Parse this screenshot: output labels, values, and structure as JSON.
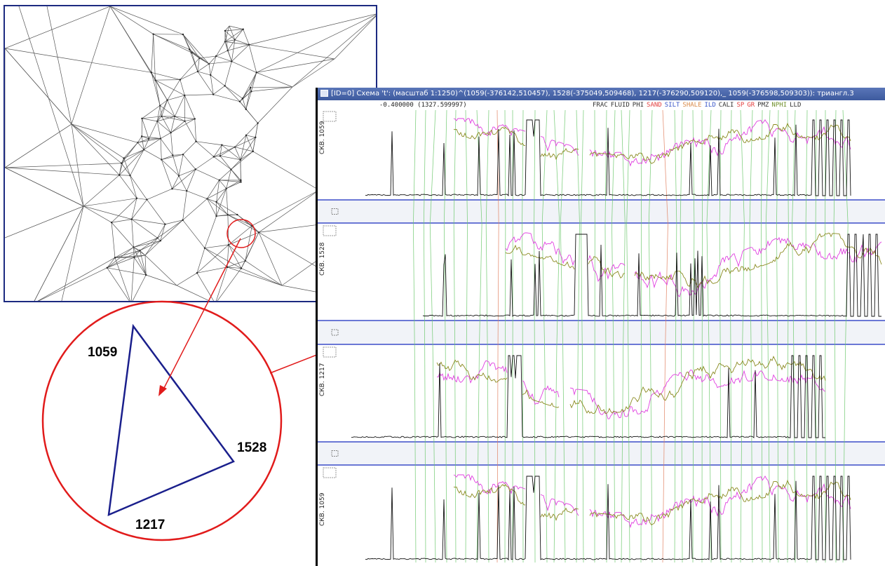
{
  "zoom_inset": {
    "labels": {
      "top_vertex": "1059",
      "right_vertex": "1528",
      "bottom_vertex": "1217"
    },
    "colors": {
      "circle": "#e11b1b",
      "triangle": "#1a1f8c",
      "arrow": "#e11b1b"
    }
  },
  "correlation_window": {
    "title": "[ID=0] Схема 't': (масштаб 1:1250)^(1059(-376142,510457), 1528(-375049,509468), 1217(-376290,509120),_ 1059(-376598,509303)): триангл.3",
    "depth_readout": "-0.400000 (1327.599997)",
    "curve_legend": [
      {
        "name": "FRAC",
        "color": "#333333"
      },
      {
        "name": "FLUID",
        "color": "#333333"
      },
      {
        "name": "PHI",
        "color": "#333333"
      },
      {
        "name": "SAND",
        "color": "#e34040"
      },
      {
        "name": "SILT",
        "color": "#3a56c8"
      },
      {
        "name": "SHALE",
        "color": "#d88a4a"
      },
      {
        "name": "ILD",
        "color": "#3a56c8"
      },
      {
        "name": "CALI",
        "color": "#333333"
      },
      {
        "name": "SP",
        "color": "#e34040"
      },
      {
        "name": "GR",
        "color": "#e34040"
      },
      {
        "name": "PMZ",
        "color": "#333333"
      },
      {
        "name": "NPHI",
        "color": "#6f8f2a"
      },
      {
        "name": "LLD",
        "color": "#333333"
      }
    ],
    "wells": [
      {
        "label": "СКВ. 1059"
      },
      {
        "label": "СКВ. 1528"
      },
      {
        "label": "СКВ. 1217"
      },
      {
        "label": "СКВ. 1059"
      }
    ],
    "colors": {
      "title_bar": "#3d5a9e",
      "separator": "#3b4cc8",
      "correlation_line": "#6cc86c",
      "magenta_curve": "#e040e0",
      "olive_curve": "#8a8a20",
      "black_curve": "#111111"
    }
  },
  "map": {
    "colors": {
      "border": "#1c2a80",
      "edges": "#555555"
    }
  }
}
